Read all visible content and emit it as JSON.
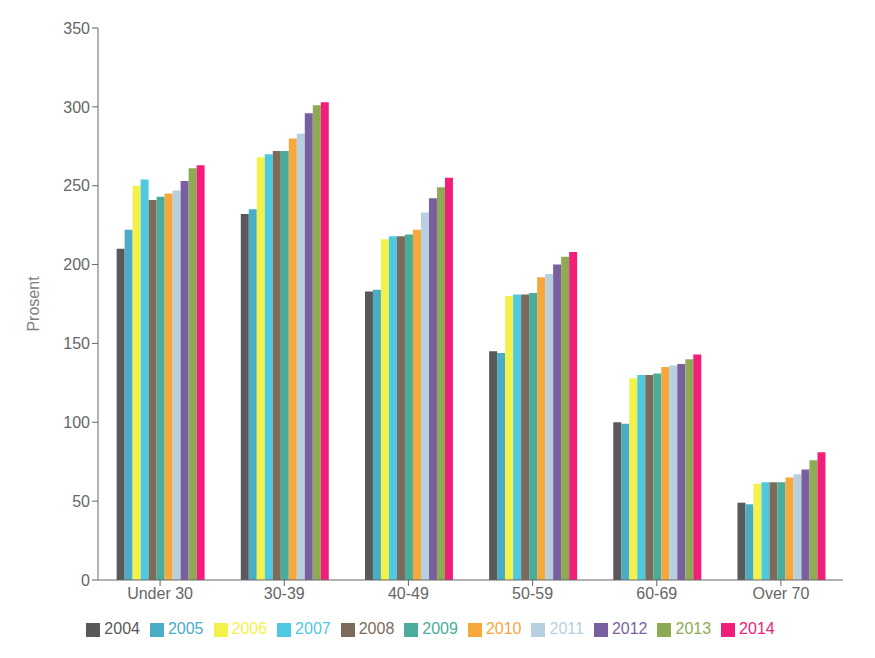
{
  "chart_data": {
    "type": "bar",
    "categories": [
      "Under 30",
      "30-39",
      "40-49",
      "50-59",
      "60-69",
      "Over 70"
    ],
    "series": [
      {
        "name": "2004",
        "color": "#595959",
        "values": [
          210,
          232,
          183,
          145,
          100,
          49
        ]
      },
      {
        "name": "2005",
        "color": "#4bacc6",
        "values": [
          222,
          235,
          184,
          144,
          99,
          48
        ]
      },
      {
        "name": "2006",
        "color": "#f2f24a",
        "values": [
          250,
          268,
          216,
          180,
          128,
          61
        ]
      },
      {
        "name": "2007",
        "color": "#4ec9e1",
        "values": [
          254,
          270,
          218,
          181,
          130,
          62
        ]
      },
      {
        "name": "2008",
        "color": "#7b6b5a",
        "values": [
          241,
          272,
          218,
          181,
          130,
          62
        ]
      },
      {
        "name": "2009",
        "color": "#4aac9a",
        "values": [
          243,
          272,
          219,
          182,
          131,
          62
        ]
      },
      {
        "name": "2010",
        "color": "#f6a83c",
        "values": [
          245,
          280,
          222,
          192,
          135,
          65
        ]
      },
      {
        "name": "2011",
        "color": "#b8cfe0",
        "values": [
          247,
          283,
          233,
          194,
          136,
          67
        ]
      },
      {
        "name": "2012",
        "color": "#7a5fa0",
        "values": [
          253,
          296,
          242,
          200,
          137,
          70
        ]
      },
      {
        "name": "2013",
        "color": "#8faa55",
        "values": [
          261,
          301,
          249,
          205,
          140,
          76
        ]
      },
      {
        "name": "2014",
        "color": "#f0207a",
        "values": [
          263,
          303,
          255,
          208,
          143,
          81
        ]
      }
    ],
    "ylabel": "Prosent",
    "ylim": [
      0,
      350
    ],
    "yticks": [
      0,
      50,
      100,
      150,
      200,
      250,
      300,
      350
    ],
    "grid": false,
    "legend": "bottom"
  }
}
